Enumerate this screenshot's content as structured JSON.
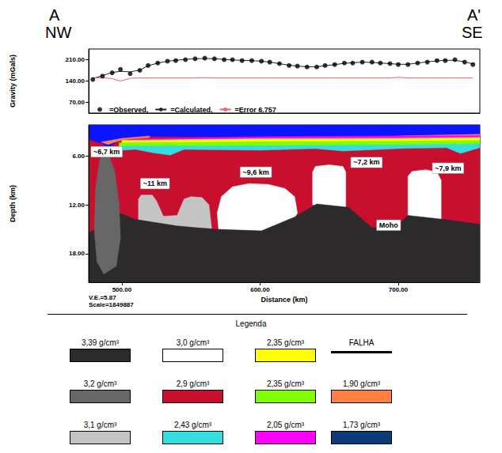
{
  "header": {
    "left": [
      "A",
      "NW"
    ],
    "right": [
      "A'",
      "SE"
    ]
  },
  "chart_data": [
    {
      "type": "line",
      "ylabel": "Gravity (mGals)",
      "xlim": [
        476,
        759
      ],
      "ylim": [
        35,
        245
      ],
      "yticks": [
        {
          "value": 70,
          "label": "70.00"
        },
        {
          "value": 140,
          "label": "140.00"
        },
        {
          "value": 210,
          "label": "210.00"
        }
      ],
      "tick_labels": "y",
      "grid": false,
      "legend": "lower left",
      "x": [
        479,
        486,
        493,
        499,
        506,
        513,
        519,
        526,
        533,
        539,
        546,
        553,
        560,
        567,
        574,
        580,
        587,
        594,
        601,
        607,
        614,
        621,
        627,
        634,
        641,
        647,
        654,
        661,
        667,
        674,
        681,
        687,
        694,
        700,
        707,
        714,
        721,
        728,
        734,
        741,
        748,
        754
      ],
      "series": [
        {
          "name": "=Observed,",
          "type": "scatter",
          "marker": "circle",
          "color": "#000000",
          "values": [
            145,
            156,
            167,
            178,
            164,
            175,
            191,
            199,
            205,
            207,
            210,
            213,
            215,
            213,
            210,
            210,
            207,
            207,
            205,
            202,
            197,
            191,
            189,
            186,
            186,
            191,
            194,
            199,
            199,
            202,
            202,
            199,
            197,
            194,
            194,
            199,
            202,
            207,
            207,
            210,
            202,
            194
          ]
        },
        {
          "name": "=Calculated,",
          "type": "line",
          "line_style": "solid",
          "color": "#222222",
          "values": [
            148,
            158,
            168,
            172,
            170,
            176,
            190,
            199,
            205,
            208,
            211,
            213,
            214,
            213,
            211,
            209,
            208,
            207,
            205,
            202,
            197,
            192,
            189,
            187,
            187,
            190,
            194,
            198,
            200,
            202,
            201,
            199,
            197,
            195,
            195,
            199,
            203,
            206,
            208,
            208,
            203,
            196
          ]
        },
        {
          "name": "=Error 6.757",
          "type": "line",
          "line_style": "solid",
          "color": "#e8606a",
          "values": [
            150,
            151,
            148,
            140,
            149,
            150,
            150,
            150,
            150,
            150,
            150,
            150,
            151,
            150,
            150,
            150,
            150,
            150,
            150,
            150,
            150,
            150,
            150,
            150,
            150,
            150,
            150,
            150,
            150,
            150,
            150,
            150,
            150,
            152,
            150,
            150,
            150,
            150,
            150,
            150,
            150,
            150
          ]
        }
      ]
    },
    {
      "type": "cross_section",
      "xlabel": "Distance (km)",
      "ylabel": "Depth (km)",
      "xlim": [
        476,
        759
      ],
      "ylim": [
        2.2,
        21.5
      ],
      "xticks": [
        {
          "value": 500,
          "label": "500.00"
        },
        {
          "value": 600,
          "label": "600.00"
        },
        {
          "value": 700,
          "label": "700.00"
        }
      ],
      "yticks": [
        {
          "value": 6,
          "label": "6.00"
        },
        {
          "value": 12,
          "label": "12.00"
        },
        {
          "value": 18,
          "label": "18.00"
        }
      ],
      "grid": false,
      "bodies": [
        {
          "unit": 5,
          "x": [
            476,
            759,
            759,
            476
          ],
          "y": [
            2.2,
            2.2,
            21.5,
            21.5
          ]
        },
        {
          "color": "#0a14ff",
          "x": [
            476,
            759,
            759,
            700,
            600,
            520,
            500,
            490,
            485,
            476
          ],
          "y": [
            2.2,
            2.2,
            3.4,
            3.6,
            3.7,
            3.6,
            3.9,
            5.0,
            4.4,
            4.0
          ]
        },
        {
          "unit": 7,
          "x": [
            700,
            759,
            759,
            700
          ],
          "y": [
            3.55,
            3.35,
            3.7,
            3.85
          ]
        },
        {
          "unit": 7,
          "x": [
            485,
            500,
            520,
            520,
            500,
            490
          ],
          "y": [
            4.3,
            3.85,
            3.55,
            3.75,
            4.05,
            4.6
          ]
        },
        {
          "unit": 10,
          "x": [
            505,
            600,
            700,
            759,
            759,
            700,
            600,
            505
          ],
          "y": [
            3.95,
            3.65,
            3.55,
            3.5,
            3.8,
            3.9,
            3.95,
            4.15
          ]
        },
        {
          "unit": 2,
          "x": [
            500,
            600,
            700,
            759,
            759,
            700,
            600,
            500
          ],
          "y": [
            4.1,
            3.9,
            3.85,
            3.75,
            4.15,
            4.25,
            4.3,
            4.4
          ]
        },
        {
          "unit": 6,
          "x": [
            498,
            600,
            700,
            759,
            759,
            700,
            600,
            498
          ],
          "y": [
            4.4,
            4.25,
            4.2,
            4.1,
            4.6,
            4.7,
            4.8,
            4.9
          ]
        },
        {
          "unit": 9,
          "x": [
            500,
            600,
            700,
            759,
            759,
            745,
            735,
            700,
            660,
            640,
            600,
            545,
            535,
            522,
            510,
            500
          ],
          "y": [
            4.8,
            4.75,
            4.65,
            4.55,
            5.0,
            5.7,
            5.0,
            5.1,
            5.4,
            5.1,
            5.3,
            5.2,
            5.9,
            5.6,
            5.2,
            5.3
          ]
        },
        {
          "unit": 1,
          "x": [
            570,
            569,
            572,
            580,
            592,
            606,
            618,
            625,
            627,
            625,
            601
          ],
          "y": [
            15,
            13,
            11,
            9.8,
            9.4,
            9.5,
            10,
            11,
            13,
            13.6,
            15.2
          ]
        },
        {
          "unit": 1,
          "x": [
            638,
            638,
            640,
            650,
            660,
            662,
            662
          ],
          "y": [
            12,
            8,
            7.3,
            7.1,
            7.3,
            8,
            12.3
          ]
        },
        {
          "unit": 1,
          "x": [
            707,
            707,
            710,
            720,
            728,
            731,
            731
          ],
          "y": [
            13.4,
            8.5,
            7.9,
            7.7,
            8,
            9,
            13.8
          ]
        },
        {
          "unit": 8,
          "x": [
            512,
            512,
            514,
            522,
            525,
            530,
            540,
            545,
            550,
            558,
            563,
            565
          ],
          "y": [
            14.5,
            11.3,
            10.8,
            10.8,
            11.5,
            13.4,
            13.3,
            11.3,
            11.0,
            11.1,
            12,
            14.9
          ]
        },
        {
          "unit": 0,
          "x": [
            476,
            498,
            510,
            540,
            567,
            601,
            625,
            641,
            664,
            681,
            698,
            707,
            733,
            759,
            759,
            476
          ],
          "y": [
            15.5,
            13.0,
            13.8,
            14.6,
            15.0,
            15.2,
            13.5,
            11.9,
            12.3,
            14.8,
            14.8,
            13.3,
            13.8,
            14.4,
            21.5,
            21.5
          ]
        },
        {
          "unit": 4,
          "x": [
            481,
            484,
            488,
            491,
            495,
            498,
            499,
            496,
            487,
            482,
            480
          ],
          "y": [
            10,
            6.5,
            5.5,
            6,
            8,
            12,
            16,
            19.5,
            20.5,
            19,
            15
          ]
        }
      ],
      "annotations": [
        {
          "text": "~6,7 km",
          "x": 489,
          "y": 5.5
        },
        {
          "text": "~11 km",
          "x": 524,
          "y": 9.4
        },
        {
          "text": "~9,6 km",
          "x": 597,
          "y": 8.0
        },
        {
          "text": "~7,2 km",
          "x": 677,
          "y": 6.8
        },
        {
          "text": "~7,9 km",
          "x": 736,
          "y": 7.5
        },
        {
          "text": "Moho",
          "x": 693,
          "y": 14.5
        }
      ],
      "footnotes": [
        "V.E.=5.87",
        "Scale=1849887"
      ]
    }
  ],
  "legend_panel": {
    "title": "Legenda",
    "items": [
      {
        "label": "3,39 g/cm³",
        "color": "#2d2a2b"
      },
      {
        "label": "3,0 g/cm³",
        "color": "#ffffff"
      },
      {
        "label": "2,35 g/cm³",
        "color": "#ffff00"
      },
      {
        "label": "FALHA",
        "color": "#000000",
        "line_style": "solid"
      },
      {
        "label": "3,2 g/cm³",
        "color": "#676767"
      },
      {
        "label": "2,9 g/cm³",
        "color": "#c8102e"
      },
      {
        "label": "2,35 g/cm³",
        "color": "#80ff00"
      },
      {
        "label": "1,90 g/cm³",
        "color": "#ff8040"
      },
      {
        "label": "3,1 g/cm³",
        "color": "#c4c4c4"
      },
      {
        "label": "2,43 g/cm³",
        "color": "#33dde0"
      },
      {
        "label": "2,05 g/cm³",
        "color": "#ff00ff"
      },
      {
        "label": "1,73 g/cm³",
        "color": "#0b3a7a"
      }
    ]
  }
}
